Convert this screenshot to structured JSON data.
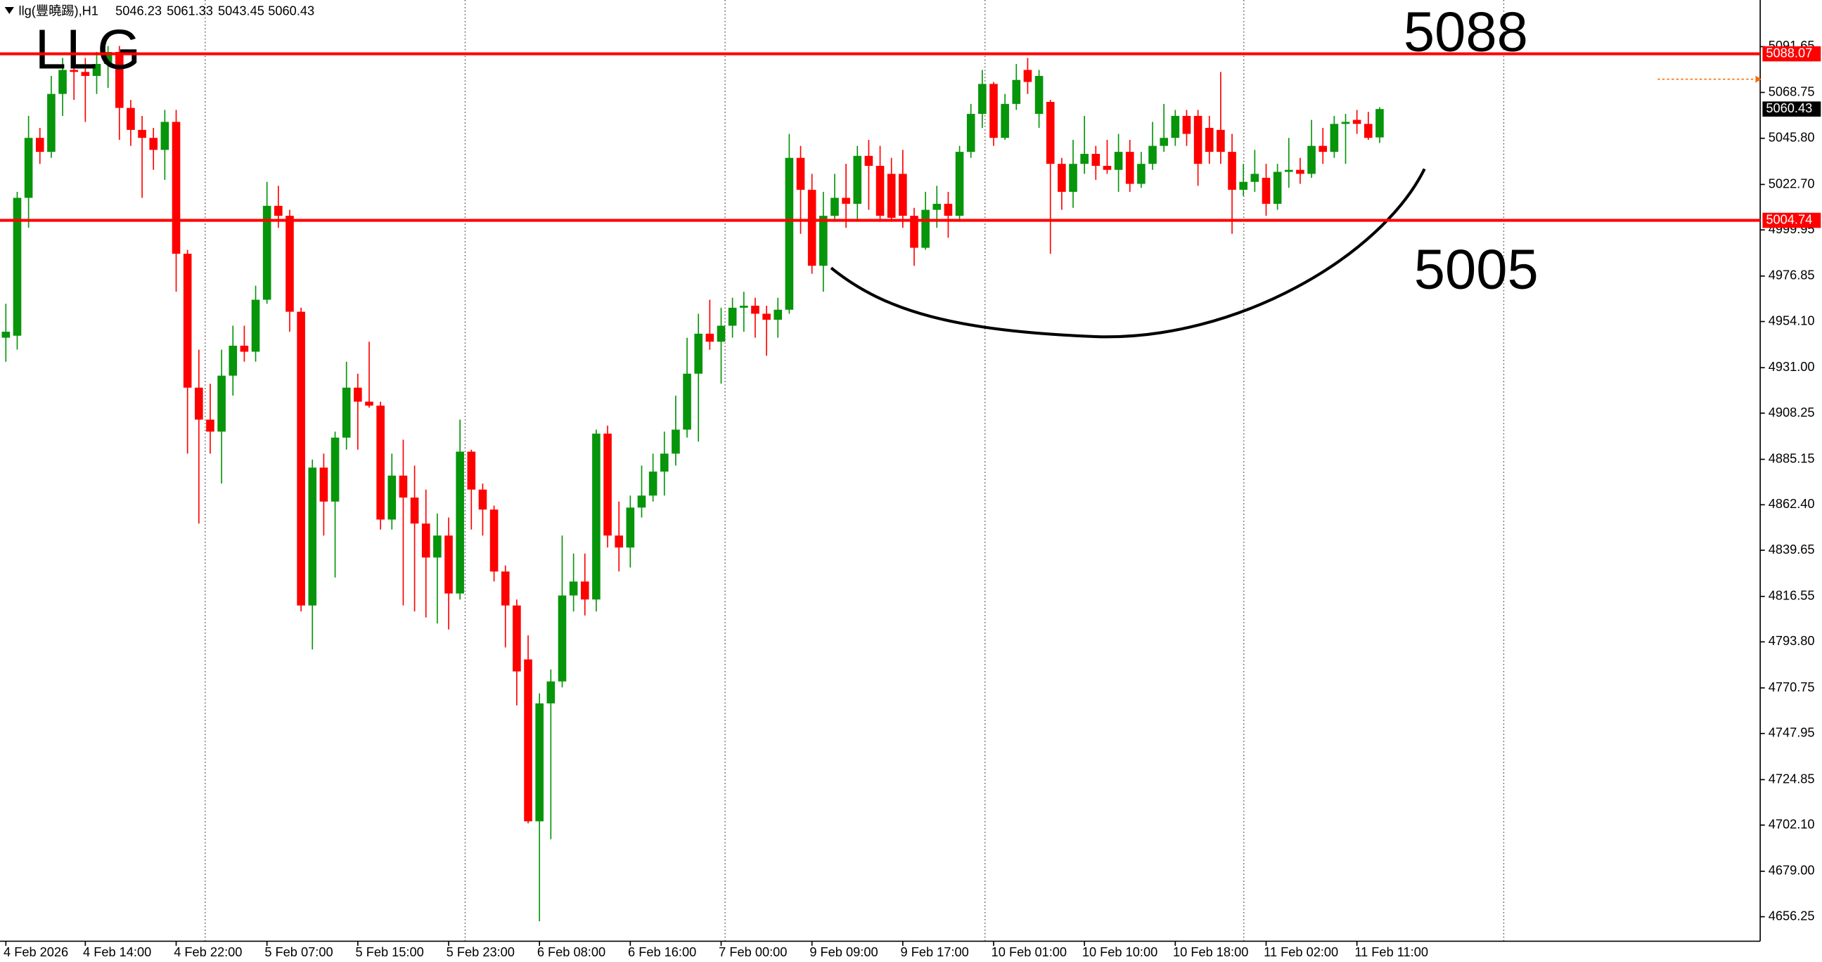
{
  "chart_data": {
    "type": "candlestick",
    "title": "llg(豐曉踢),H1",
    "annotations": [
      "LLG",
      "5088",
      "5005"
    ],
    "up_color": "#07950b",
    "down_color": "#ff0000",
    "ylim": [
      4644,
      5115
    ],
    "yticks": [
      5091.65,
      5068.75,
      {
        "value": 5045.8,
        "label": "5045.80"
      },
      {
        "value": 5022.7,
        "label": "5022.70"
      },
      4999.95,
      4976.85,
      {
        "value": 4954.1,
        "label": "4954.10"
      },
      {
        "value": 4931,
        "label": "4931.00"
      },
      4908.25,
      4885.15,
      {
        "value": 4862.4,
        "label": "4862.40"
      },
      4839.65,
      4816.55,
      {
        "value": 4793.8,
        "label": "4793.80"
      },
      4770.75,
      4747.95,
      4724.85,
      {
        "value": 4702.1,
        "label": "4702.10"
      },
      {
        "value": 4679,
        "label": "4679.00"
      },
      4656.25
    ],
    "price_lines": [
      {
        "value": 5088.07,
        "color": "#ff0000"
      },
      {
        "value": 5004.74,
        "color": "#ff0000"
      }
    ],
    "categories": [
      "4 Feb 2026",
      null,
      null,
      null,
      null,
      null,
      null,
      "4 Feb 14:00",
      null,
      null,
      null,
      null,
      null,
      null,
      null,
      "4 Feb 22:00",
      null,
      null,
      null,
      null,
      null,
      null,
      null,
      "5 Feb 07:00",
      null,
      null,
      null,
      null,
      null,
      null,
      null,
      "5 Feb 15:00",
      null,
      null,
      null,
      null,
      null,
      null,
      null,
      "5 Feb 23:00",
      null,
      null,
      null,
      null,
      null,
      null,
      null,
      "6 Feb 08:00",
      null,
      null,
      null,
      null,
      null,
      null,
      null,
      "6 Feb 16:00",
      null,
      null,
      null,
      null,
      null,
      null,
      null,
      "7 Feb 00:00",
      null,
      null,
      null,
      null,
      null,
      null,
      null,
      "9 Feb 09:00",
      null,
      null,
      null,
      null,
      null,
      null,
      null,
      "9 Feb 17:00",
      null,
      null,
      null,
      null,
      null,
      null,
      null,
      "10 Feb 01:00",
      null,
      null,
      null,
      null,
      null,
      null,
      null,
      "10 Feb 10:00",
      null,
      null,
      null,
      null,
      null,
      null,
      null,
      "10 Feb 18:00",
      null,
      null,
      null,
      null,
      null,
      null,
      null,
      "11 Feb 02:00",
      null,
      null,
      null,
      null,
      null,
      null,
      null,
      "11 Feb 11:00",
      null,
      null
    ],
    "ohlc": [
      [
        4946,
        4963,
        4934,
        4949
      ],
      [
        4947,
        5019,
        4940,
        5016
      ],
      [
        5016,
        5057,
        5001,
        5046
      ],
      [
        5046,
        5051,
        5033,
        5039
      ],
      [
        5039,
        5077,
        5036,
        5068
      ],
      [
        5068,
        5086,
        5057,
        5080
      ],
      [
        5080,
        5089,
        5065,
        5079
      ],
      [
        5079,
        5086,
        5054,
        5077
      ],
      [
        5077,
        5089,
        5068,
        5083
      ],
      [
        5083,
        5092,
        5071,
        5089
      ],
      [
        5089,
        5092,
        5045,
        5061
      ],
      [
        5061,
        5065,
        5042,
        5050
      ],
      [
        5050,
        5057,
        5016,
        5046
      ],
      [
        5046,
        5051,
        5030,
        5040
      ],
      [
        5040,
        5060,
        5025,
        5054
      ],
      [
        5054,
        5060,
        4969,
        4988
      ],
      [
        4988,
        4990,
        4888,
        4921
      ],
      [
        4921,
        4940,
        4853,
        4905
      ],
      [
        4905,
        4923,
        4888,
        4899
      ],
      [
        4899,
        4940,
        4873,
        4927
      ],
      [
        4927,
        4952,
        4917,
        4942
      ],
      [
        4942,
        4952,
        4934,
        4939
      ],
      [
        4939,
        4972,
        4934,
        4965
      ],
      [
        4965,
        5024,
        4963,
        5012
      ],
      [
        5012,
        5022,
        5001,
        5007
      ],
      [
        5007,
        5010,
        4949,
        4959
      ],
      [
        4959,
        4961,
        4809,
        4812
      ],
      [
        4812,
        4885,
        4790,
        4881
      ],
      [
        4881,
        4888,
        4847,
        4864
      ],
      [
        4864,
        4899,
        4826,
        4896
      ],
      [
        4896,
        4934,
        4890,
        4921
      ],
      [
        4921,
        4928,
        4890,
        4914
      ],
      [
        4914,
        4944,
        4911,
        4912
      ],
      [
        4912,
        4914,
        4850,
        4855
      ],
      [
        4855,
        4888,
        4850,
        4877
      ],
      [
        4877,
        4895,
        4812,
        4866
      ],
      [
        4866,
        4882,
        4809,
        4853
      ],
      [
        4853,
        4870,
        4806,
        4836
      ],
      [
        4836,
        4858,
        4803,
        4847
      ],
      [
        4847,
        4856,
        4800,
        4818
      ],
      [
        4818,
        4905,
        4815,
        4889
      ],
      [
        4889,
        4890,
        4850,
        4870
      ],
      [
        4870,
        4873,
        4847,
        4860
      ],
      [
        4860,
        4862,
        4824,
        4829
      ],
      [
        4829,
        4832,
        4791,
        4812
      ],
      [
        4812,
        4815,
        4762,
        4779
      ],
      [
        4785,
        4797,
        4703,
        4704
      ],
      [
        4704,
        4768,
        4654,
        4763
      ],
      [
        4763,
        4780,
        4695,
        4774
      ],
      [
        4774,
        4847,
        4771,
        4817
      ],
      [
        4817,
        4838,
        4809,
        4824
      ],
      [
        4824,
        4838,
        4807,
        4815
      ],
      [
        4815,
        4900,
        4809,
        4898
      ],
      [
        4898,
        4902,
        4841,
        4847
      ],
      [
        4847,
        4864,
        4829,
        4841
      ],
      [
        4841,
        4867,
        4831,
        4861
      ],
      [
        4861,
        4882,
        4856,
        4867
      ],
      [
        4867,
        4888,
        4864,
        4879
      ],
      [
        4879,
        4899,
        4867,
        4888
      ],
      [
        4888,
        4917,
        4882,
        4900
      ],
      [
        4900,
        4946,
        4896,
        4928
      ],
      [
        4928,
        4958,
        4894,
        4948
      ],
      [
        4948,
        4965,
        4940,
        4944
      ],
      [
        4944,
        4961,
        4923,
        4952
      ],
      [
        4952,
        4966,
        4946,
        4961
      ],
      [
        4961,
        4969,
        4949,
        4962
      ],
      [
        4962,
        4966,
        4946,
        4958
      ],
      [
        4958,
        4962,
        4937,
        4955
      ],
      [
        4955,
        4966,
        4946,
        4960
      ],
      [
        4960,
        5048,
        4958,
        5036
      ],
      [
        5036,
        5042,
        4998,
        5020
      ],
      [
        5020,
        5028,
        4978,
        4982
      ],
      [
        4982,
        5019,
        4969,
        5007
      ],
      [
        5007,
        5028,
        5004,
        5016
      ],
      [
        5016,
        5033,
        5001,
        5013
      ],
      [
        5013,
        5042,
        5004,
        5037
      ],
      [
        5037,
        5045,
        5010,
        5032
      ],
      [
        5032,
        5042,
        5004,
        5007
      ],
      [
        5028,
        5036,
        5004,
        5006
      ],
      [
        5028,
        5040,
        5001,
        5007
      ],
      [
        5007,
        5011,
        4982,
        4991
      ],
      [
        4991,
        5019,
        4990,
        5010
      ],
      [
        5010,
        5022,
        5001,
        5013
      ],
      [
        5013,
        5019,
        4996,
        5007
      ],
      [
        5007,
        5042,
        5004,
        5039
      ],
      [
        5039,
        5063,
        5036,
        5058
      ],
      [
        5058,
        5080,
        5051,
        5073
      ],
      [
        5073,
        5074,
        5042,
        5046
      ],
      [
        5046,
        5068,
        5045,
        5063
      ],
      [
        5063,
        5083,
        5060,
        5075
      ],
      [
        5080,
        5086,
        5068,
        5074
      ],
      [
        5058,
        5080,
        5051,
        5077
      ],
      [
        5064,
        5065,
        4988,
        5033
      ],
      [
        5033,
        5036,
        5010,
        5019
      ],
      [
        5019,
        5045,
        5011,
        5033
      ],
      [
        5033,
        5057,
        5028,
        5038
      ],
      [
        5038,
        5042,
        5025,
        5032
      ],
      [
        5032,
        5045,
        5028,
        5030
      ],
      [
        5030,
        5048,
        5019,
        5039
      ],
      [
        5039,
        5045,
        5019,
        5023
      ],
      [
        5023,
        5039,
        5021,
        5033
      ],
      [
        5033,
        5054,
        5030,
        5042
      ],
      [
        5042,
        5063,
        5039,
        5046
      ],
      [
        5046,
        5060,
        5042,
        5057
      ],
      [
        5057,
        5060,
        5042,
        5048
      ],
      [
        5057,
        5060,
        5022,
        5033
      ],
      [
        5051,
        5057,
        5033,
        5039
      ],
      [
        5050,
        5079,
        5033,
        5039
      ],
      [
        5039,
        5048,
        4998,
        5020
      ],
      [
        5020,
        5033,
        5017,
        5024
      ],
      [
        5024,
        5040,
        5019,
        5028
      ],
      [
        5026,
        5033,
        5007,
        5013
      ],
      [
        5013,
        5033,
        5010,
        5029
      ],
      [
        5029,
        5046,
        5021,
        5030
      ],
      [
        5030,
        5036,
        5023,
        5028
      ],
      [
        5028,
        5055,
        5026,
        5042
      ],
      [
        5042,
        5051,
        5033,
        5039
      ],
      [
        5039,
        5057,
        5036,
        5053
      ],
      [
        5053,
        5058,
        5033,
        5054
      ],
      [
        5055,
        5060,
        5048,
        5053
      ],
      [
        5053,
        5059,
        5045,
        5046
      ],
      [
        5046.23,
        5061.33,
        5043.45,
        5060.43
      ]
    ]
  }
}
